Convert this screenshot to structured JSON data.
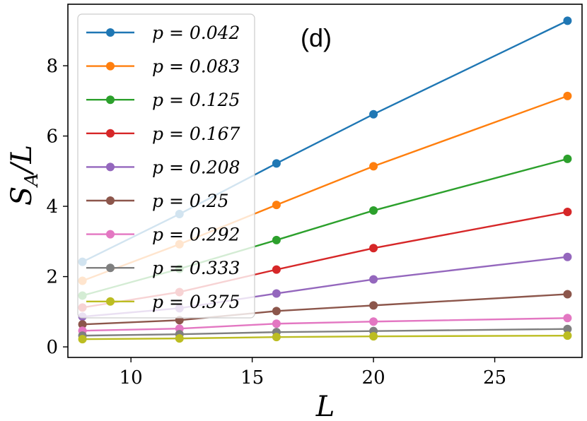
{
  "chart_data": {
    "type": "line",
    "panel_label": "(d)",
    "xlabel": "L",
    "ylabel": "S_A/L",
    "ylabel_main": "S",
    "ylabel_sub": "A",
    "ylabel_tail": "/L",
    "xlim": [
      7.4,
      28.6
    ],
    "ylim": [
      -0.3,
      9.75
    ],
    "xticks": [
      10,
      15,
      20,
      25
    ],
    "yticks": [
      0,
      2,
      4,
      6,
      8
    ],
    "x": [
      8,
      12,
      16,
      20,
      28
    ],
    "legend_position": "upper-left",
    "series": [
      {
        "name": "p = 0.042",
        "color": "#1f77b4",
        "values": [
          2.42,
          3.78,
          5.22,
          6.62,
          9.28
        ]
      },
      {
        "name": "p = 0.083",
        "color": "#ff7f0e",
        "values": [
          1.88,
          2.92,
          4.04,
          5.14,
          7.14
        ]
      },
      {
        "name": "p = 0.125",
        "color": "#2ca02c",
        "values": [
          1.46,
          2.22,
          3.04,
          3.88,
          5.35
        ]
      },
      {
        "name": "p = 0.167",
        "color": "#d62728",
        "values": [
          1.12,
          1.56,
          2.2,
          2.81,
          3.84
        ]
      },
      {
        "name": "p = 0.208",
        "color": "#9467bd",
        "values": [
          0.86,
          1.1,
          1.52,
          1.92,
          2.56
        ]
      },
      {
        "name": "p = 0.25",
        "color": "#8c564b",
        "values": [
          0.64,
          0.76,
          1.02,
          1.18,
          1.5
        ]
      },
      {
        "name": "p = 0.292",
        "color": "#e377c2",
        "values": [
          0.46,
          0.52,
          0.66,
          0.72,
          0.82
        ]
      },
      {
        "name": "p = 0.333",
        "color": "#7f7f7f",
        "values": [
          0.32,
          0.36,
          0.42,
          0.45,
          0.51
        ]
      },
      {
        "name": "p = 0.375",
        "color": "#bcbd22",
        "values": [
          0.22,
          0.24,
          0.28,
          0.3,
          0.32
        ]
      }
    ]
  }
}
